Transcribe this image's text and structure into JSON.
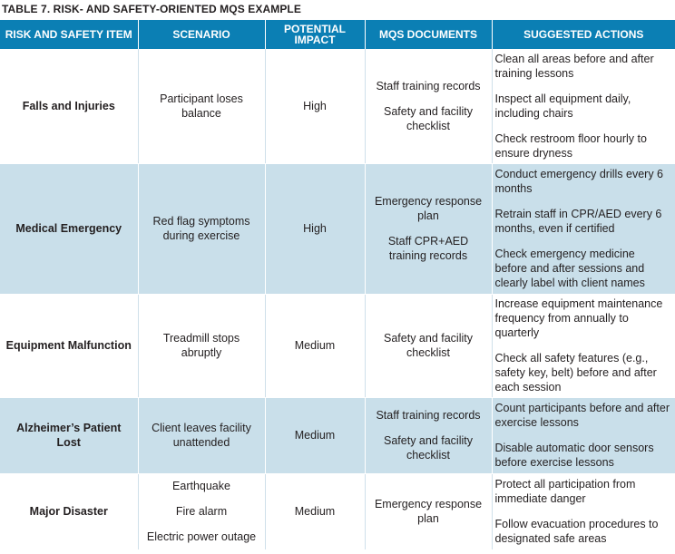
{
  "caption": "TABLE 7. RISK- AND SAFETY-ORIENTED MQS EXAMPLE",
  "headers": [
    "RISK AND SAFETY ITEM",
    "SCENARIO",
    "POTENTIAL IMPACT",
    "MQS DOCUMENTS",
    "SUGGESTED ACTIONS"
  ],
  "rows": [
    {
      "item": "Falls and Injuries",
      "scenario": [
        "Participant loses balance"
      ],
      "impact": "High",
      "documents": [
        "Staff training records",
        "Safety and facility checklist"
      ],
      "actions": [
        "Clean all areas before and after training lessons",
        "Inspect all equipment daily, including chairs",
        "Check restroom floor hourly to ensure dryness"
      ]
    },
    {
      "item": "Medical Emergency",
      "scenario": [
        "Red flag symptoms during exercise"
      ],
      "impact": "High",
      "documents": [
        "Emergency response plan",
        "Staff CPR+AED training records"
      ],
      "actions": [
        "Conduct emergency drills every 6 months",
        "Retrain staff in CPR/AED every 6 months, even if certified",
        "Check emergency medicine before and after sessions and clearly label with client names"
      ]
    },
    {
      "item": "Equipment Malfunction",
      "scenario": [
        "Treadmill stops abruptly"
      ],
      "impact": "Medium",
      "documents": [
        "Safety and facility checklist"
      ],
      "actions": [
        "Increase equipment maintenance frequency from annually to quarterly",
        "Check all safety features (e.g., safety key, belt) before and after each session"
      ]
    },
    {
      "item": "Alzheimer’s Patient Lost",
      "scenario": [
        "Client leaves facility unattended"
      ],
      "impact": "Medium",
      "documents": [
        "Staff training records",
        "Safety and facility checklist"
      ],
      "actions": [
        "Count participants before and after exercise lessons",
        "Disable automatic door sensors before exercise lessons"
      ]
    },
    {
      "item": "Major Disaster",
      "scenario": [
        "Earthquake",
        "Fire alarm",
        "Electric power outage"
      ],
      "impact": "Medium",
      "documents": [
        "Emergency response plan"
      ],
      "actions": [
        "Protect all participation from immediate danger",
        "Follow evacuation procedures to designated safe areas"
      ]
    }
  ]
}
